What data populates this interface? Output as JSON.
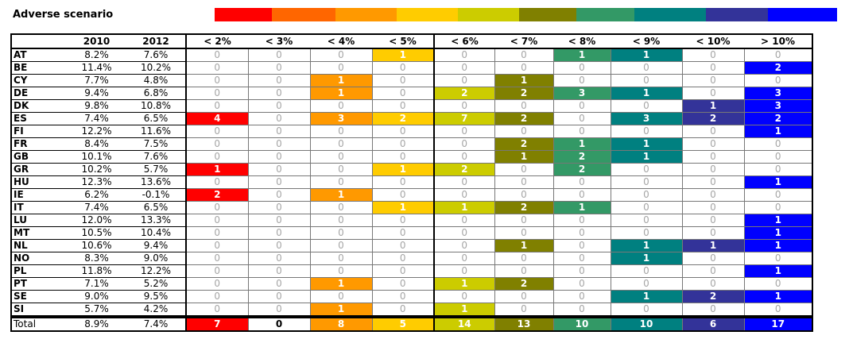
{
  "title": "Adverse scenario",
  "colors": [
    "#ff0000",
    "#ff6600",
    "#ff9900",
    "#ffcc00",
    "#cccc00",
    "#808000",
    "#339966",
    "#008080",
    "#333399",
    "#0000ff"
  ],
  "headers": {
    "country": "",
    "y2010": "2010",
    "y2012": "2012",
    "bins": [
      "< 2%",
      "< 3%",
      "< 4%",
      "< 5%",
      "< 6%",
      "< 7%",
      "< 8%",
      "< 9%",
      "< 10%",
      "> 10%"
    ]
  },
  "rows": [
    {
      "country": "AT",
      "y2010": "8.2%",
      "y2012": "7.6%",
      "counts": [
        0,
        0,
        0,
        1,
        0,
        0,
        1,
        1,
        0,
        0
      ]
    },
    {
      "country": "BE",
      "y2010": "11.4%",
      "y2012": "10.2%",
      "counts": [
        0,
        0,
        0,
        0,
        0,
        0,
        0,
        0,
        0,
        2
      ]
    },
    {
      "country": "CY",
      "y2010": "7.7%",
      "y2012": "4.8%",
      "counts": [
        0,
        0,
        1,
        0,
        0,
        1,
        0,
        0,
        0,
        0
      ]
    },
    {
      "country": "DE",
      "y2010": "9.4%",
      "y2012": "6.8%",
      "counts": [
        0,
        0,
        1,
        0,
        2,
        2,
        3,
        1,
        0,
        3
      ]
    },
    {
      "country": "DK",
      "y2010": "9.8%",
      "y2012": "10.8%",
      "counts": [
        0,
        0,
        0,
        0,
        0,
        0,
        0,
        0,
        1,
        3
      ]
    },
    {
      "country": "ES",
      "y2010": "7.4%",
      "y2012": "6.5%",
      "counts": [
        4,
        0,
        3,
        2,
        7,
        2,
        0,
        3,
        2,
        2
      ]
    },
    {
      "country": "FI",
      "y2010": "12.2%",
      "y2012": "11.6%",
      "counts": [
        0,
        0,
        0,
        0,
        0,
        0,
        0,
        0,
        0,
        1
      ]
    },
    {
      "country": "FR",
      "y2010": "8.4%",
      "y2012": "7.5%",
      "counts": [
        0,
        0,
        0,
        0,
        0,
        2,
        1,
        1,
        0,
        0
      ]
    },
    {
      "country": "GB",
      "y2010": "10.1%",
      "y2012": "7.6%",
      "counts": [
        0,
        0,
        0,
        0,
        0,
        1,
        2,
        1,
        0,
        0
      ]
    },
    {
      "country": "GR",
      "y2010": "10.2%",
      "y2012": "5.7%",
      "counts": [
        1,
        0,
        0,
        1,
        2,
        0,
        2,
        0,
        0,
        0
      ]
    },
    {
      "country": "HU",
      "y2010": "12.3%",
      "y2012": "13.6%",
      "counts": [
        0,
        0,
        0,
        0,
        0,
        0,
        0,
        0,
        0,
        1
      ]
    },
    {
      "country": "IE",
      "y2010": "6.2%",
      "y2012": "-0.1%",
      "counts": [
        2,
        0,
        1,
        0,
        0,
        0,
        0,
        0,
        0,
        0
      ]
    },
    {
      "country": "IT",
      "y2010": "7.4%",
      "y2012": "6.5%",
      "counts": [
        0,
        0,
        0,
        1,
        1,
        2,
        1,
        0,
        0,
        0
      ]
    },
    {
      "country": "LU",
      "y2010": "12.0%",
      "y2012": "13.3%",
      "counts": [
        0,
        0,
        0,
        0,
        0,
        0,
        0,
        0,
        0,
        1
      ]
    },
    {
      "country": "MT",
      "y2010": "10.5%",
      "y2012": "10.4%",
      "counts": [
        0,
        0,
        0,
        0,
        0,
        0,
        0,
        0,
        0,
        1
      ]
    },
    {
      "country": "NL",
      "y2010": "10.6%",
      "y2012": "9.4%",
      "counts": [
        0,
        0,
        0,
        0,
        0,
        1,
        0,
        1,
        1,
        1
      ]
    },
    {
      "country": "NO",
      "y2010": "8.3%",
      "y2012": "9.0%",
      "counts": [
        0,
        0,
        0,
        0,
        0,
        0,
        0,
        1,
        0,
        0
      ]
    },
    {
      "country": "PL",
      "y2010": "11.8%",
      "y2012": "12.2%",
      "counts": [
        0,
        0,
        0,
        0,
        0,
        0,
        0,
        0,
        0,
        1
      ]
    },
    {
      "country": "PT",
      "y2010": "7.1%",
      "y2012": "5.2%",
      "counts": [
        0,
        0,
        1,
        0,
        1,
        2,
        0,
        0,
        0,
        0
      ]
    },
    {
      "country": "SE",
      "y2010": "9.0%",
      "y2012": "9.5%",
      "counts": [
        0,
        0,
        0,
        0,
        0,
        0,
        0,
        1,
        2,
        1
      ]
    },
    {
      "country": "SI",
      "y2010": "5.7%",
      "y2012": "4.2%",
      "counts": [
        0,
        0,
        1,
        0,
        1,
        0,
        0,
        0,
        0,
        0
      ]
    }
  ],
  "total": {
    "label": "Total",
    "y2010": "8.9%",
    "y2012": "7.4%",
    "counts": [
      7,
      0,
      8,
      5,
      14,
      13,
      10,
      10,
      6,
      17
    ]
  }
}
